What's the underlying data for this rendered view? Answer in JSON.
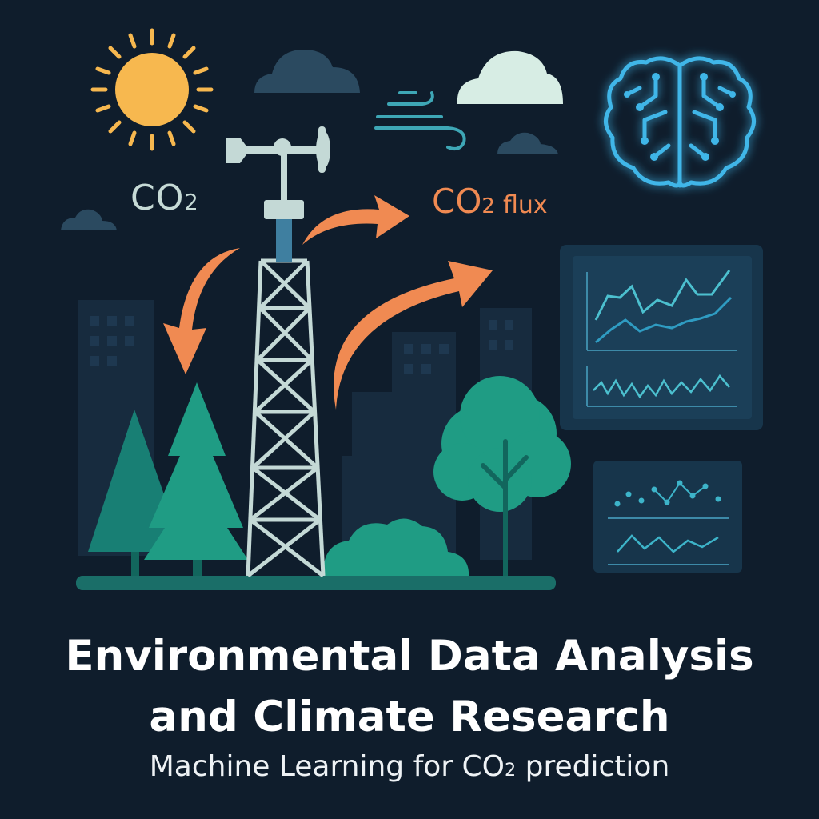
{
  "labels": {
    "co2_main": "CO",
    "co2_sub": "2",
    "flux_main": "CO",
    "flux_sub": "2",
    "flux_word": "flux"
  },
  "title": {
    "line1": "Environmental Data Analysis",
    "line2": "and Climate Research"
  },
  "subtitle": {
    "prefix": "Machine Learning for CO",
    "sub": "2",
    "suffix": " prediction"
  },
  "colors": {
    "background": "#0f1d2c",
    "accent_orange": "#f08a52",
    "tree_teal": "#1f9c84",
    "brain_blue": "#3fb6e8",
    "sun_yellow": "#f7b84f"
  },
  "icons": [
    "sun-icon",
    "cloud-icon",
    "wind-icon",
    "brain-icon",
    "tower-icon",
    "tree-icon",
    "chart-panel-icon"
  ]
}
